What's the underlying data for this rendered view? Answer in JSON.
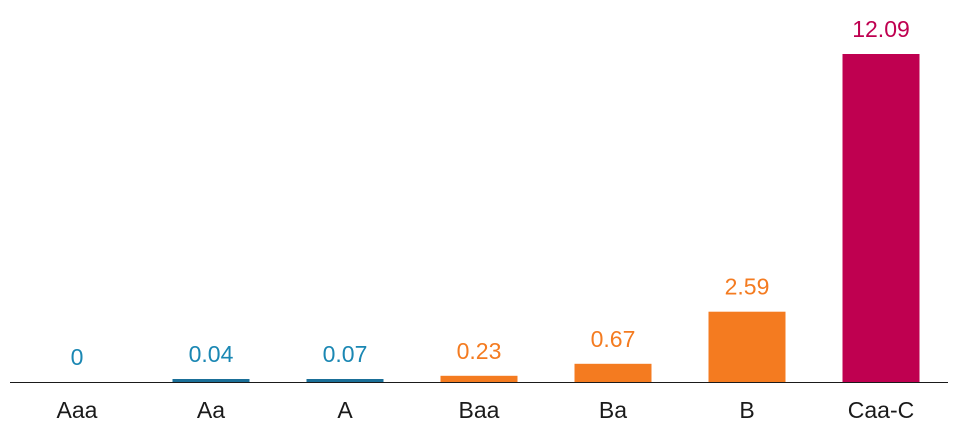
{
  "chart_data": {
    "type": "bar",
    "categories": [
      "Aaa",
      "Aa",
      "A",
      "Baa",
      "Ba",
      "B",
      "Caa-C"
    ],
    "values": [
      0,
      0.04,
      0.07,
      0.23,
      0.67,
      2.59,
      12.09
    ],
    "value_labels": [
      "0",
      "0.04",
      "0.07",
      "0.23",
      "0.67",
      "2.59",
      "12.09"
    ],
    "bar_colors": [
      "#1a87b3",
      "#1a6f98",
      "#1a6f98",
      "#f47b20",
      "#f47b20",
      "#f47b20",
      "#bf0050"
    ],
    "label_colors": [
      "#1a87b3",
      "#1a87b3",
      "#1a87b3",
      "#f47b20",
      "#f47b20",
      "#f47b20",
      "#bf0050"
    ],
    "ylim": [
      0,
      12.09
    ],
    "grid": false,
    "axis_color": "#1a1a1a"
  }
}
